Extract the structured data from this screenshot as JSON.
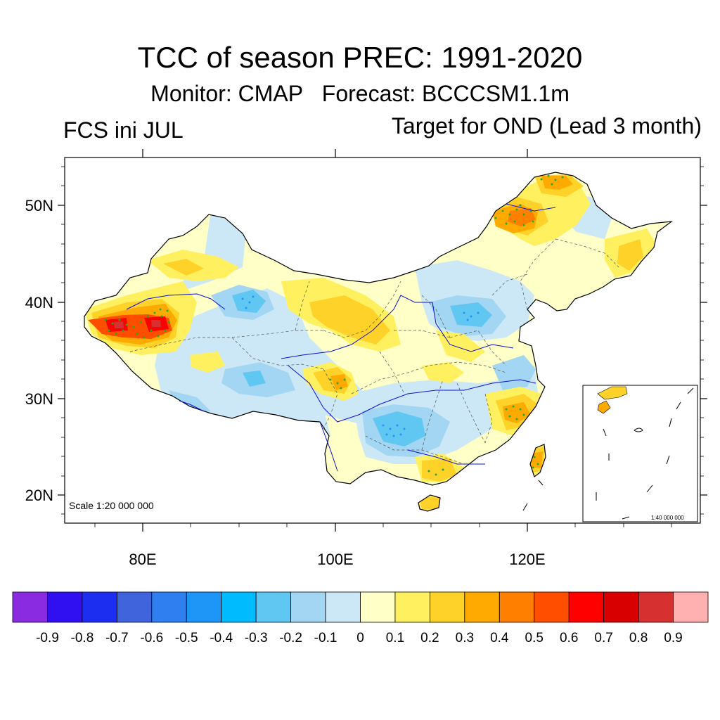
{
  "header": {
    "title": "TCC of season PREC: 1991-2020",
    "subtitle_monitor": "Monitor: CMAP",
    "subtitle_forecast": "Forecast: BCCCSM1.1m",
    "left_label": "FCS ini JUL",
    "right_label": "Target for OND (Lead 3 month)"
  },
  "map": {
    "region": "China",
    "lat_range": [
      17,
      55
    ],
    "lon_range": [
      72,
      138
    ],
    "lat_ticks": [
      "20N",
      "30N",
      "40N",
      "50N"
    ],
    "lon_ticks": [
      "80E",
      "100E",
      "120E"
    ],
    "scale_note": "Scale 1:20 000 000",
    "inset_scale_note": "1:40 000 000"
  },
  "colorbar": {
    "colors": [
      "#8a2be2",
      "#3010f0",
      "#1c2ef0",
      "#3f64dc",
      "#2f7ff0",
      "#1e96f8",
      "#00bcff",
      "#60c6f2",
      "#a2d6f2",
      "#cce8f6",
      "#ffffc8",
      "#fff060",
      "#ffd22a",
      "#ffaa00",
      "#ff8000",
      "#ff4e00",
      "#ff0000",
      "#d80000",
      "#d63030",
      "#ffb0b0"
    ],
    "labels": [
      "-0.9",
      "-0.8",
      "-0.7",
      "-0.6",
      "-0.5",
      "-0.4",
      "-0.3",
      "-0.2",
      "-0.1",
      "0",
      "0.1",
      "0.2",
      "0.3",
      "0.4",
      "0.5",
      "0.6",
      "0.7",
      "0.8",
      "0.9"
    ]
  }
}
